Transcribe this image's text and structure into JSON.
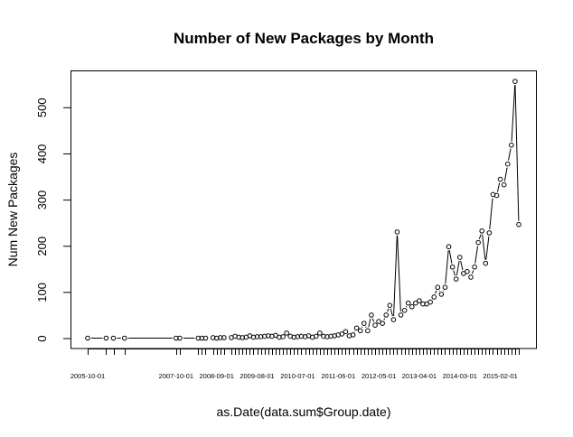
{
  "chart_data": {
    "type": "line",
    "style": "points-and-lines",
    "title": "Number of New Packages by Month",
    "xlabel": "as.Date(data.sum$Group.date)",
    "ylabel": "Num New Packages",
    "ylim": [
      -22,
      580
    ],
    "yticks": [
      0,
      100,
      200,
      300,
      400,
      500
    ],
    "xtick_labels": [
      "2005-10-01",
      "2007-10-01",
      "2008-09-01",
      "2009-08-01",
      "2010-07-01",
      "2011-06-01",
      "2012-05-01",
      "2013-04-01",
      "2014-03-01",
      "2015-02-01"
    ],
    "grid": false,
    "legend": "none",
    "color": "#000000",
    "points": [
      [
        "2005-10-01",
        1
      ],
      [
        "2006-03-01",
        1
      ],
      [
        "2006-05-01",
        1
      ],
      [
        "2006-08-01",
        1
      ],
      [
        "2007-10-01",
        1
      ],
      [
        "2007-11-01",
        1
      ],
      [
        "2008-04-01",
        1
      ],
      [
        "2008-05-01",
        1
      ],
      [
        "2008-06-01",
        1
      ],
      [
        "2008-08-01",
        2
      ],
      [
        "2008-09-01",
        1
      ],
      [
        "2008-10-01",
        2
      ],
      [
        "2008-11-01",
        2
      ],
      [
        "2009-01-01",
        2
      ],
      [
        "2009-02-01",
        5
      ],
      [
        "2009-03-01",
        3
      ],
      [
        "2009-04-01",
        2
      ],
      [
        "2009-05-01",
        3
      ],
      [
        "2009-06-01",
        6
      ],
      [
        "2009-07-01",
        3
      ],
      [
        "2009-08-01",
        4
      ],
      [
        "2009-09-01",
        4
      ],
      [
        "2009-10-01",
        5
      ],
      [
        "2009-11-01",
        6
      ],
      [
        "2009-12-01",
        5
      ],
      [
        "2010-01-01",
        7
      ],
      [
        "2010-02-01",
        3
      ],
      [
        "2010-03-01",
        4
      ],
      [
        "2010-04-01",
        12
      ],
      [
        "2010-05-01",
        5
      ],
      [
        "2010-06-01",
        3
      ],
      [
        "2010-07-01",
        4
      ],
      [
        "2010-08-01",
        5
      ],
      [
        "2010-09-01",
        4
      ],
      [
        "2010-10-01",
        6
      ],
      [
        "2010-11-01",
        3
      ],
      [
        "2010-12-01",
        5
      ],
      [
        "2011-01-01",
        12
      ],
      [
        "2011-02-01",
        5
      ],
      [
        "2011-03-01",
        4
      ],
      [
        "2011-04-01",
        5
      ],
      [
        "2011-05-01",
        6
      ],
      [
        "2011-06-01",
        8
      ],
      [
        "2011-07-01",
        10
      ],
      [
        "2011-08-01",
        15
      ],
      [
        "2011-09-01",
        6
      ],
      [
        "2011-10-01",
        8
      ],
      [
        "2011-11-01",
        23
      ],
      [
        "2011-12-01",
        17
      ],
      [
        "2012-01-01",
        33
      ],
      [
        "2012-02-01",
        17
      ],
      [
        "2012-03-01",
        51
      ],
      [
        "2012-04-01",
        29
      ],
      [
        "2012-05-01",
        37
      ],
      [
        "2012-06-01",
        33
      ],
      [
        "2012-07-01",
        51
      ],
      [
        "2012-08-01",
        72
      ],
      [
        "2012-09-01",
        41
      ],
      [
        "2012-10-01",
        231
      ],
      [
        "2012-11-01",
        51
      ],
      [
        "2012-12-01",
        61
      ],
      [
        "2013-01-01",
        77
      ],
      [
        "2013-02-01",
        69
      ],
      [
        "2013-03-01",
        77
      ],
      [
        "2013-04-01",
        82
      ],
      [
        "2013-05-01",
        75
      ],
      [
        "2013-06-01",
        75
      ],
      [
        "2013-07-01",
        79
      ],
      [
        "2013-08-01",
        90
      ],
      [
        "2013-09-01",
        111
      ],
      [
        "2013-10-01",
        96
      ],
      [
        "2013-11-01",
        111
      ],
      [
        "2013-12-01",
        199
      ],
      [
        "2014-01-01",
        155
      ],
      [
        "2014-02-01",
        129
      ],
      [
        "2014-03-01",
        176
      ],
      [
        "2014-04-01",
        141
      ],
      [
        "2014-05-01",
        145
      ],
      [
        "2014-06-01",
        133
      ],
      [
        "2014-07-01",
        155
      ],
      [
        "2014-08-01",
        208
      ],
      [
        "2014-09-01",
        233
      ],
      [
        "2014-10-01",
        163
      ],
      [
        "2014-11-01",
        229
      ],
      [
        "2014-12-01",
        312
      ],
      [
        "2015-01-01",
        310
      ],
      [
        "2015-02-01",
        345
      ],
      [
        "2015-03-01",
        333
      ],
      [
        "2015-04-01",
        378
      ],
      [
        "2015-05-01",
        419
      ],
      [
        "2015-06-01",
        557
      ],
      [
        "2015-07-01",
        247
      ]
    ]
  }
}
